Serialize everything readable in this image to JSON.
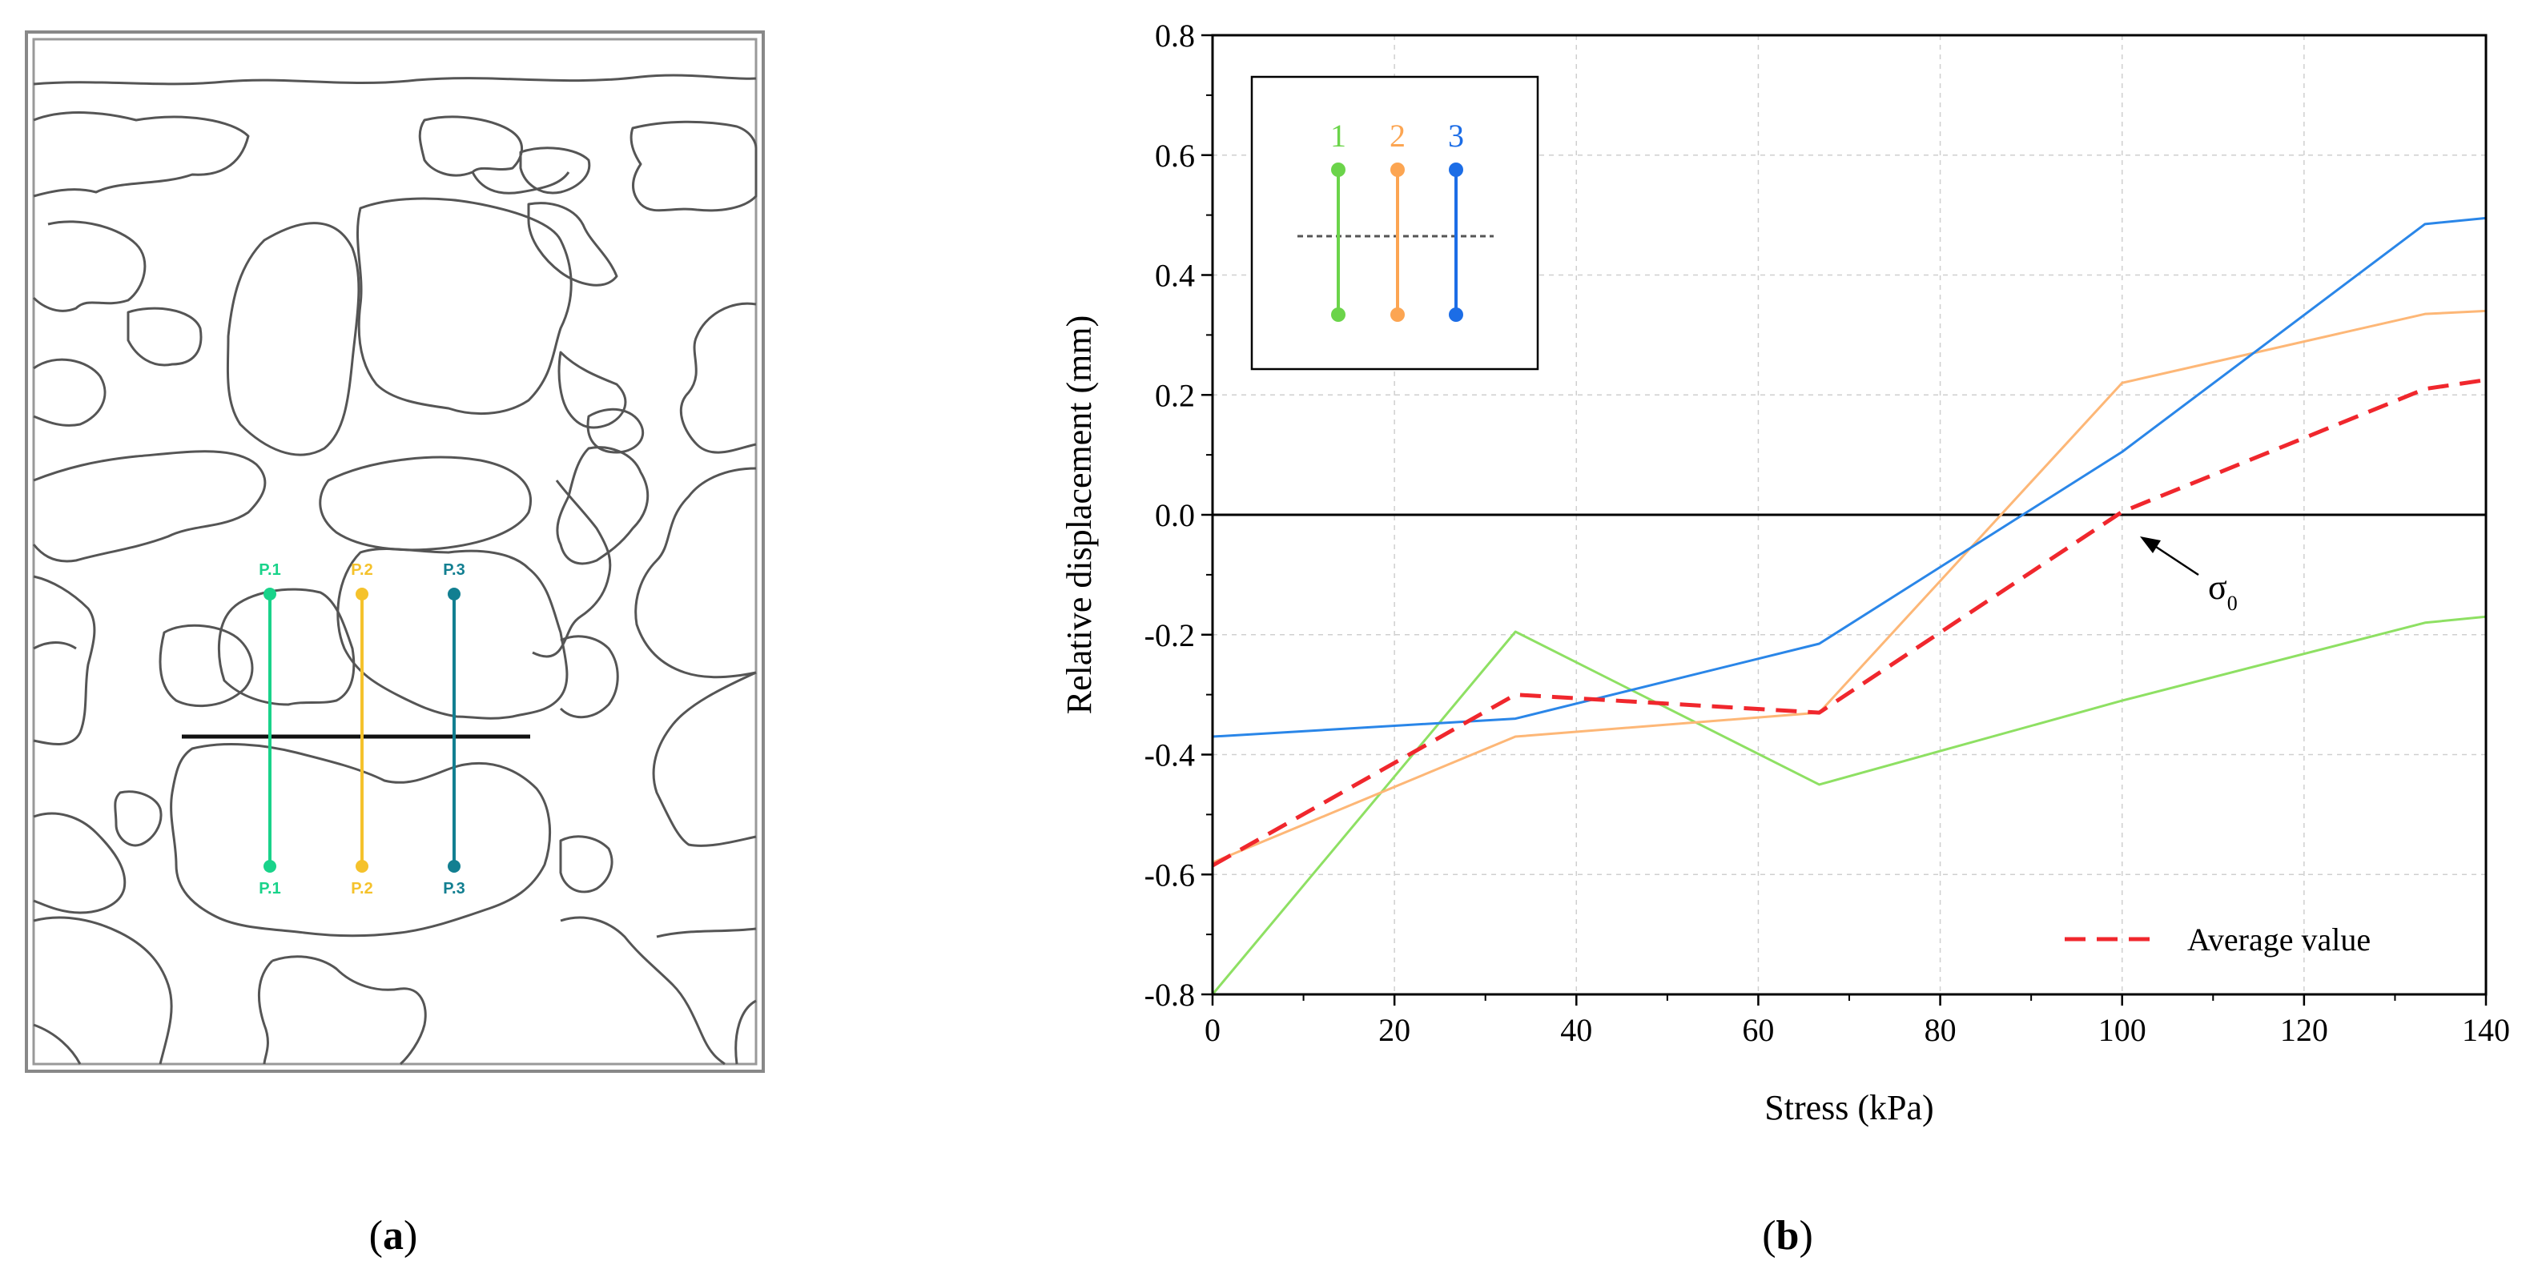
{
  "panels": {
    "a": {
      "label_open": "(",
      "label_letter": "a",
      "label_close": ")",
      "probes": [
        {
          "top_label": "P.1",
          "bottom_label": "P.1",
          "color": "#19d38a"
        },
        {
          "top_label": "P.2",
          "bottom_label": "P.2",
          "color": "#f5c22c"
        },
        {
          "top_label": "P.3",
          "bottom_label": "P.3",
          "color": "#127f91"
        }
      ]
    },
    "b": {
      "label_open": "(",
      "label_letter": "b",
      "label_close": ")"
    }
  },
  "chart_data": {
    "type": "line",
    "xlabel": "Stress (kPa)",
    "ylabel": "Relative displacement (mm)",
    "xlim": [
      0,
      140
    ],
    "ylim": [
      -0.8,
      0.8
    ],
    "xticks": [
      0,
      20,
      40,
      60,
      80,
      100,
      120,
      140
    ],
    "yticks": [
      -0.8,
      -0.6,
      -0.4,
      -0.2,
      0.0,
      0.2,
      0.4,
      0.6,
      0.8
    ],
    "ytick_labels": [
      "-0.8",
      "-0.6",
      "-0.4",
      "-0.2",
      "0.0",
      "0.2",
      "0.4",
      "0.6",
      "0.8"
    ],
    "grid": true,
    "series": [
      {
        "name": "1",
        "color": "#8ee063",
        "dashed": false,
        "x": [
          0,
          33.3,
          66.7,
          100,
          133.3,
          140
        ],
        "y": [
          -0.8,
          -0.195,
          -0.45,
          -0.31,
          -0.18,
          -0.17
        ]
      },
      {
        "name": "2",
        "color": "#fdb777",
        "dashed": false,
        "x": [
          0,
          33.3,
          66.7,
          100,
          133.3,
          140
        ],
        "y": [
          -0.58,
          -0.37,
          -0.33,
          0.22,
          0.335,
          0.34
        ]
      },
      {
        "name": "3",
        "color": "#2a86e8",
        "dashed": false,
        "x": [
          0,
          33.3,
          66.7,
          100,
          133.3,
          140
        ],
        "y": [
          -0.37,
          -0.34,
          -0.215,
          0.105,
          0.485,
          0.495
        ]
      },
      {
        "name": "Average value",
        "color": "#f0272d",
        "dashed": true,
        "x": [
          0,
          33.3,
          66.7,
          100,
          133.3,
          140
        ],
        "y": [
          -0.585,
          -0.3,
          -0.33,
          0.005,
          0.21,
          0.225
        ]
      }
    ],
    "legend": {
      "label": "Average value",
      "position": "bottom-right"
    },
    "inset": {
      "labels": [
        "1",
        "2",
        "3"
      ],
      "colors": [
        "#6bd44a",
        "#fca552",
        "#1c6de6"
      ]
    },
    "annotation": {
      "symbol": "σ",
      "subscript": "0",
      "x": 100,
      "y": 0.0
    },
    "zero_line": true
  }
}
